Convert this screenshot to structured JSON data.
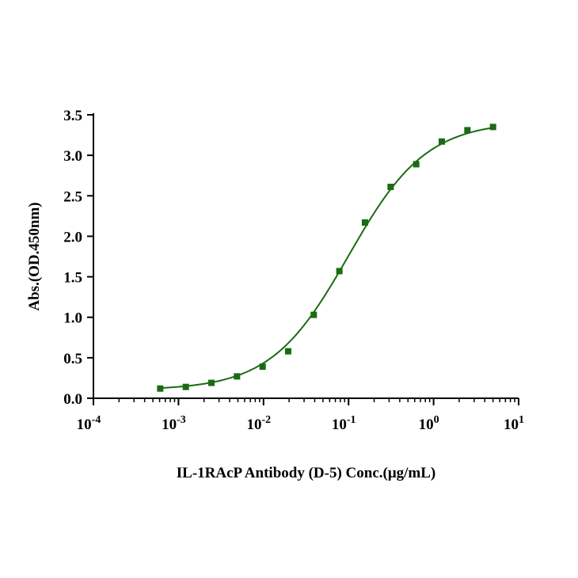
{
  "chart_data": {
    "type": "scatter",
    "title": "",
    "xlabel": "IL-1RAcP Antibody (D-5) Conc.(μg/mL)",
    "ylabel": "Abs.(OD.450nm)",
    "x_scale": "log",
    "xlim": [
      0.0001,
      10
    ],
    "ylim": [
      0,
      3.5
    ],
    "x_ticks": [
      {
        "base": "10",
        "exp": "-4",
        "value": 0.0001
      },
      {
        "base": "10",
        "exp": "-3",
        "value": 0.001
      },
      {
        "base": "10",
        "exp": "-2",
        "value": 0.01
      },
      {
        "base": "10",
        "exp": "-1",
        "value": 0.1
      },
      {
        "base": "10",
        "exp": "0",
        "value": 1
      },
      {
        "base": "10",
        "exp": "1",
        "value": 10
      }
    ],
    "y_ticks": [
      "0.0",
      "0.5",
      "1.0",
      "1.5",
      "2.0",
      "2.5",
      "3.0",
      "3.5"
    ],
    "grid": false,
    "legend": "none",
    "series": [
      {
        "marker": "square",
        "color": "#1a6b12",
        "x": [
          0.00061,
          0.00122,
          0.00244,
          0.00488,
          0.00977,
          0.0195,
          0.039,
          0.078,
          0.156,
          0.3125,
          0.625,
          1.25,
          2.5,
          5
        ],
        "y": [
          0.12,
          0.14,
          0.19,
          0.27,
          0.39,
          0.58,
          1.03,
          1.57,
          2.17,
          2.61,
          2.89,
          3.17,
          3.31,
          3.35
        ],
        "fit": {
          "type": "4PL",
          "bottom": 0.1,
          "top": 3.42,
          "ec50": 0.1,
          "hill": 0.95
        }
      }
    ]
  }
}
